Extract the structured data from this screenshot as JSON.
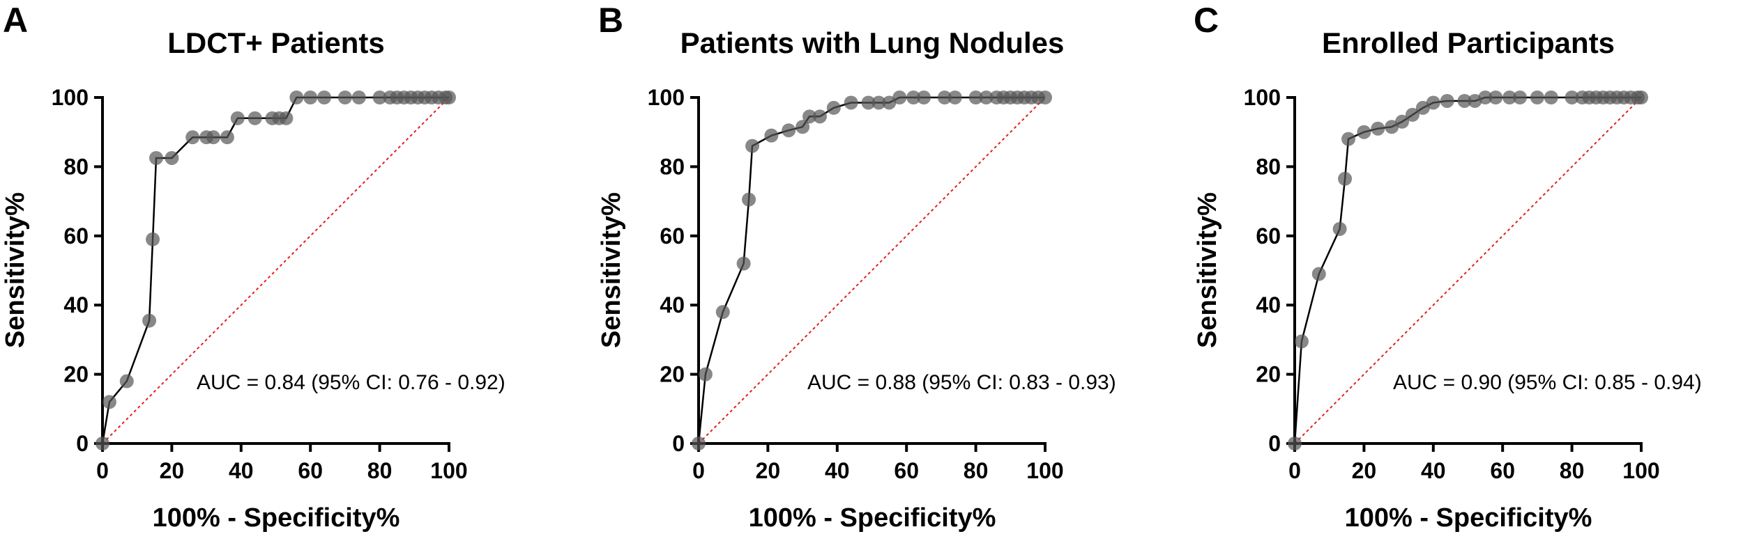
{
  "chart_data": [
    {
      "type": "line",
      "panel": "A",
      "title": "LDCT+ Patients",
      "xlabel": "100% - Specificity%",
      "ylabel": "Sensitivity%",
      "xlim": [
        0,
        100
      ],
      "ylim": [
        0,
        100
      ],
      "xticks": [
        "0",
        "20",
        "40",
        "60",
        "80",
        "100"
      ],
      "yticks": [
        "0",
        "20",
        "40",
        "60",
        "80",
        "100"
      ],
      "annotation": "AUC = 0.84 (95% CI: 0.76 - 0.92)",
      "reference_line": "diagonal",
      "x": [
        0,
        2,
        7,
        13.5,
        14.5,
        15.5,
        20,
        26,
        30,
        32,
        36,
        39,
        44,
        49,
        51,
        53,
        56,
        60,
        64,
        70,
        74,
        80,
        83,
        85,
        87,
        89,
        91,
        93,
        95,
        97,
        99,
        100
      ],
      "y": [
        0,
        12,
        18,
        35.5,
        59,
        82.5,
        82.5,
        88.5,
        88.5,
        88.5,
        88.5,
        94,
        94,
        94,
        94,
        94,
        100,
        100,
        100,
        100,
        100,
        100,
        100,
        100,
        100,
        100,
        100,
        100,
        100,
        100,
        100,
        100
      ]
    },
    {
      "type": "line",
      "panel": "B",
      "title": "Patients with Lung Nodules",
      "xlabel": "100% - Specificity%",
      "ylabel": "Sensitivity%",
      "xlim": [
        0,
        100
      ],
      "ylim": [
        0,
        100
      ],
      "xticks": [
        "0",
        "20",
        "40",
        "60",
        "80",
        "100"
      ],
      "yticks": [
        "0",
        "20",
        "40",
        "60",
        "80",
        "100"
      ],
      "annotation": "AUC = 0.88 (95% CI: 0.83 - 0.93)",
      "reference_line": "diagonal",
      "x": [
        0,
        2,
        7,
        13,
        14.5,
        15.5,
        21,
        26,
        30,
        32,
        35,
        39,
        44,
        49,
        52,
        55,
        58,
        62,
        65,
        71,
        74,
        80,
        83,
        86,
        88,
        90,
        92,
        94,
        96,
        98,
        100
      ],
      "y": [
        0,
        20,
        38,
        52,
        70.5,
        86,
        89,
        90.5,
        91.5,
        94.5,
        94.5,
        97,
        98.5,
        98.5,
        98.5,
        98.5,
        100,
        100,
        100,
        100,
        100,
        100,
        100,
        100,
        100,
        100,
        100,
        100,
        100,
        100,
        100
      ]
    },
    {
      "type": "line",
      "panel": "C",
      "title": "Enrolled Participants",
      "xlabel": "100% - Specificity%",
      "ylabel": "Sensitivity%",
      "xlim": [
        0,
        100
      ],
      "ylim": [
        0,
        100
      ],
      "xticks": [
        "0",
        "20",
        "40",
        "60",
        "80",
        "100"
      ],
      "yticks": [
        "0",
        "20",
        "40",
        "60",
        "80",
        "100"
      ],
      "annotation": "AUC = 0.90 (95% CI: 0.85 - 0.94)",
      "reference_line": "diagonal",
      "x": [
        0,
        2,
        7,
        13,
        14.5,
        15.5,
        20,
        24,
        28,
        31,
        34,
        37,
        40,
        44,
        49,
        52,
        55,
        58,
        62,
        65,
        70,
        74,
        80,
        83,
        85,
        87,
        89,
        91,
        93,
        95,
        97,
        99,
        100
      ],
      "y": [
        0,
        29.5,
        49,
        62,
        76.5,
        88,
        90,
        91,
        91.5,
        93,
        95,
        97,
        98.5,
        99,
        99,
        99,
        100,
        100,
        100,
        100,
        100,
        100,
        100,
        100,
        100,
        100,
        100,
        100,
        100,
        100,
        100,
        100,
        100
      ]
    }
  ]
}
